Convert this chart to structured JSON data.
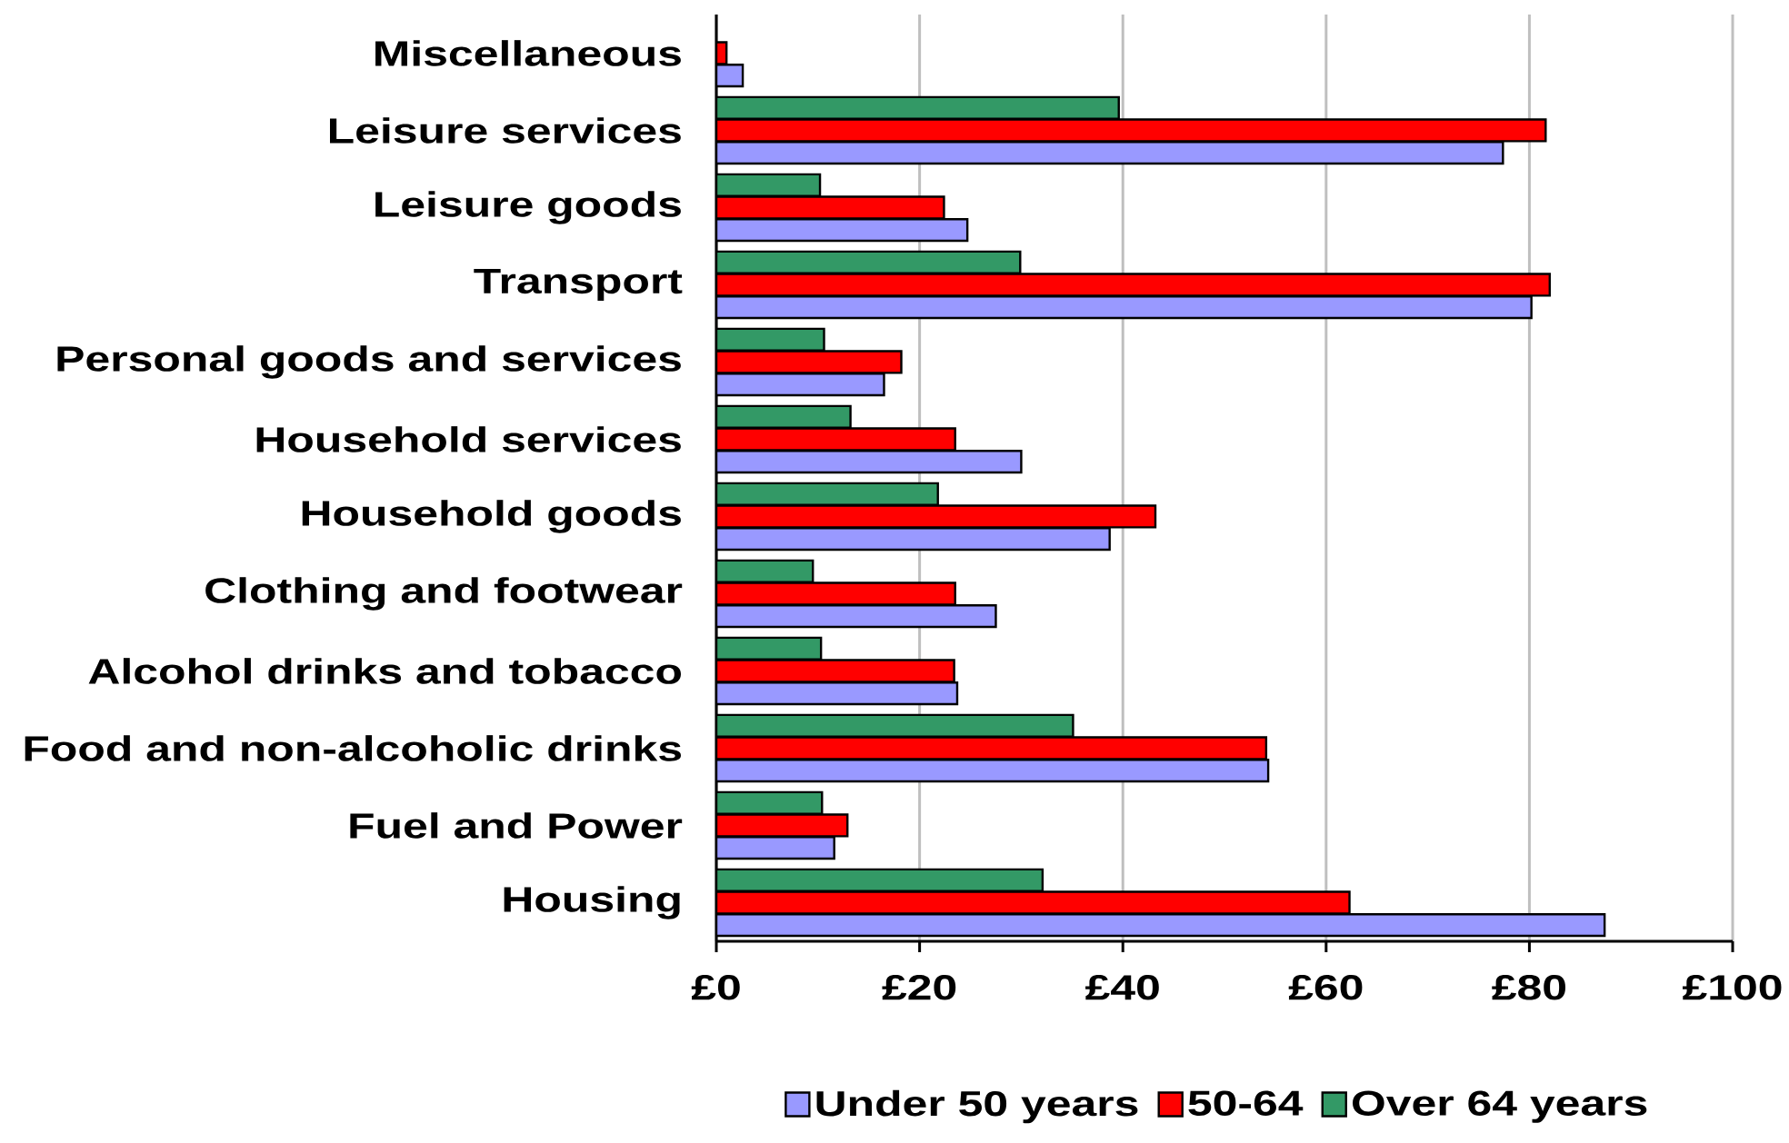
{
  "chart_data": {
    "type": "bar",
    "orientation": "horizontal",
    "categories": [
      "Miscellaneous",
      "Leisure services",
      "Leisure goods",
      "Transport",
      "Personal goods and services",
      "Household services",
      "Household goods",
      "Clothing and footwear",
      "Alcohol drinks and tobacco",
      "Food and non-alcoholic drinks",
      "Fuel and Power",
      "Housing"
    ],
    "series": [
      {
        "name": "Under 50 years",
        "color": "#9999ff",
        "values": [
          2.6,
          77.4,
          24.7,
          80.2,
          16.5,
          30.0,
          38.7,
          27.5,
          23.7,
          54.3,
          11.6,
          87.4
        ]
      },
      {
        "name": "50-64",
        "color": "#ff0000",
        "values": [
          1.0,
          81.6,
          22.4,
          82.0,
          18.2,
          23.5,
          43.2,
          23.5,
          23.4,
          54.1,
          12.9,
          62.3
        ]
      },
      {
        "name": "Over 64 years",
        "color": "#339966",
        "values": [
          null,
          39.6,
          10.2,
          29.9,
          10.6,
          13.2,
          21.8,
          9.5,
          10.3,
          35.1,
          10.4,
          32.1
        ]
      }
    ],
    "xlim": [
      0,
      100
    ],
    "xticks": [
      {
        "value": 0,
        "label": "£0"
      },
      {
        "value": 20,
        "label": "£20"
      },
      {
        "value": 40,
        "label": "£40"
      },
      {
        "value": 60,
        "label": "£60"
      },
      {
        "value": 80,
        "label": "£80"
      },
      {
        "value": 100,
        "label": "£100"
      }
    ],
    "grid": "x",
    "legend": "bottom"
  }
}
